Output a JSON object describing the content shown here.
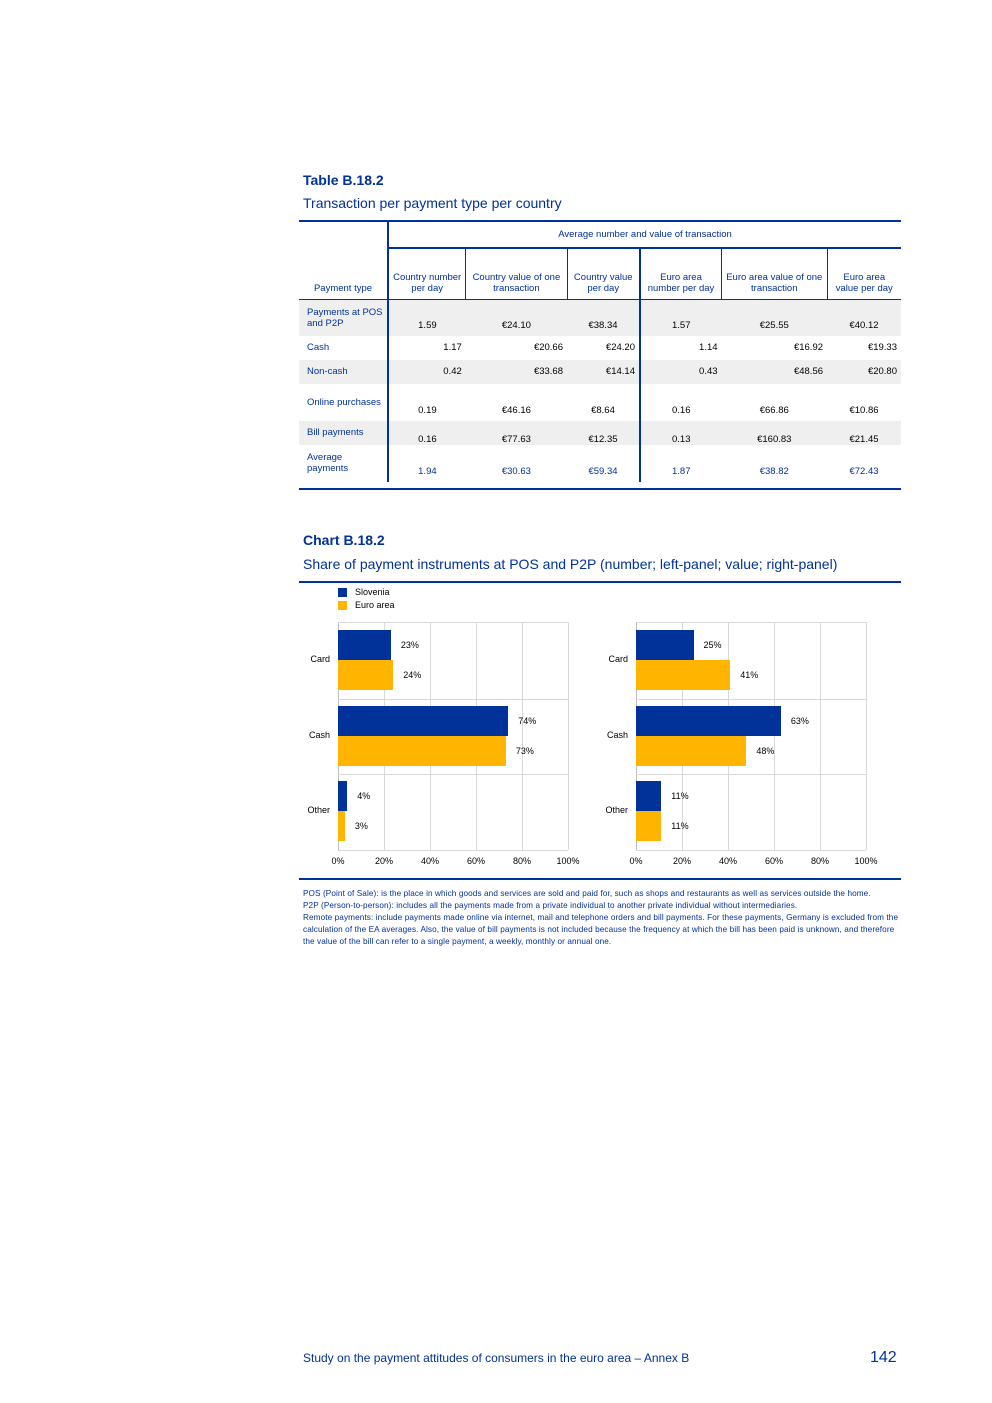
{
  "table": {
    "label": "Table B.18.2",
    "title": "Transaction per payment type per country",
    "group_header": "Average number and value of transaction",
    "columns": [
      "Payment type",
      "Country number per day",
      "Country value of one transaction",
      "Country value per day",
      "Euro area number per day",
      "Euro area value of one transaction",
      "Euro area value per day"
    ],
    "rows": [
      {
        "label": "Payments at POS and P2P",
        "values": [
          "1.59",
          "€24.10",
          "€38.34",
          "1.57",
          "€25.55",
          "€40.12"
        ]
      },
      {
        "label": "Cash",
        "values": [
          "1.17",
          "€20.66",
          "€24.20",
          "1.14",
          "€16.92",
          "€19.33"
        ]
      },
      {
        "label": "Non-cash",
        "values": [
          "0.42",
          "€33.68",
          "€14.14",
          "0.43",
          "€48.56",
          "€20.80"
        ]
      },
      {
        "label": "Online purchases",
        "values": [
          "0.19",
          "€46.16",
          "€8.64",
          "0.16",
          "€66.86",
          "€10.86"
        ]
      },
      {
        "label": "Bill payments",
        "values": [
          "0.16",
          "€77.63",
          "€12.35",
          "0.13",
          "€160.83",
          "€21.45"
        ]
      },
      {
        "label": "Average payments",
        "values": [
          "1.94",
          "€30.63",
          "€59.34",
          "1.87",
          "€38.82",
          "€72.43"
        ]
      }
    ]
  },
  "chart": {
    "label": "Chart B.18.2",
    "title": "Share of payment instruments at POS and P2P (number; left-panel; value; right-panel)",
    "legend": [
      "Slovenia",
      "Euro area"
    ],
    "colors": {
      "Slovenia": "#003299",
      "Euro area": "#FFB400"
    }
  },
  "chart_data": [
    {
      "type": "bar",
      "orientation": "horizontal",
      "categories": [
        "Card",
        "Cash",
        "Other"
      ],
      "xlim": [
        0,
        100
      ],
      "xticks": [
        "0%",
        "20%",
        "40%",
        "60%",
        "80%",
        "100%"
      ],
      "grid": true,
      "legend": "top-left",
      "series": [
        {
          "name": "Slovenia",
          "values": [
            23,
            74,
            4
          ],
          "labels": [
            "23%",
            "74%",
            "4%"
          ]
        },
        {
          "name": "Euro area",
          "values": [
            24,
            73,
            3
          ],
          "labels": [
            "24%",
            "73%",
            "3%"
          ]
        }
      ]
    },
    {
      "type": "bar",
      "orientation": "horizontal",
      "categories": [
        "Card",
        "Cash",
        "Other"
      ],
      "xlim": [
        0,
        100
      ],
      "xticks": [
        "0%",
        "20%",
        "40%",
        "60%",
        "80%",
        "100%"
      ],
      "grid": true,
      "series": [
        {
          "name": "Slovenia",
          "values": [
            25,
            63,
            11
          ],
          "labels": [
            "25%",
            "63%",
            "11%"
          ]
        },
        {
          "name": "Euro area",
          "values": [
            41,
            48,
            11
          ],
          "labels": [
            "41%",
            "48%",
            "11%"
          ]
        }
      ]
    }
  ],
  "notes": [
    "POS (Point of Sale): is the place in which goods and services are sold and paid for, such as shops and restaurants as well as services outside the home.",
    "P2P (Person-to-person): includes all the payments made from a private individual to another private individual without intermediaries.",
    "Remote payments: include payments made online via internet, mail and telephone orders and bill payments. For these payments, Germany is excluded from the calculation of the EA averages. Also, the value of bill payments is not included because the frequency at which the bill has been paid is unknown, and therefore the value of the bill can refer to a single payment, a weekly, monthly or annual one."
  ],
  "footer": {
    "text": "Study on the payment attitudes of consumers in the euro area – Annex B",
    "page": "142"
  }
}
